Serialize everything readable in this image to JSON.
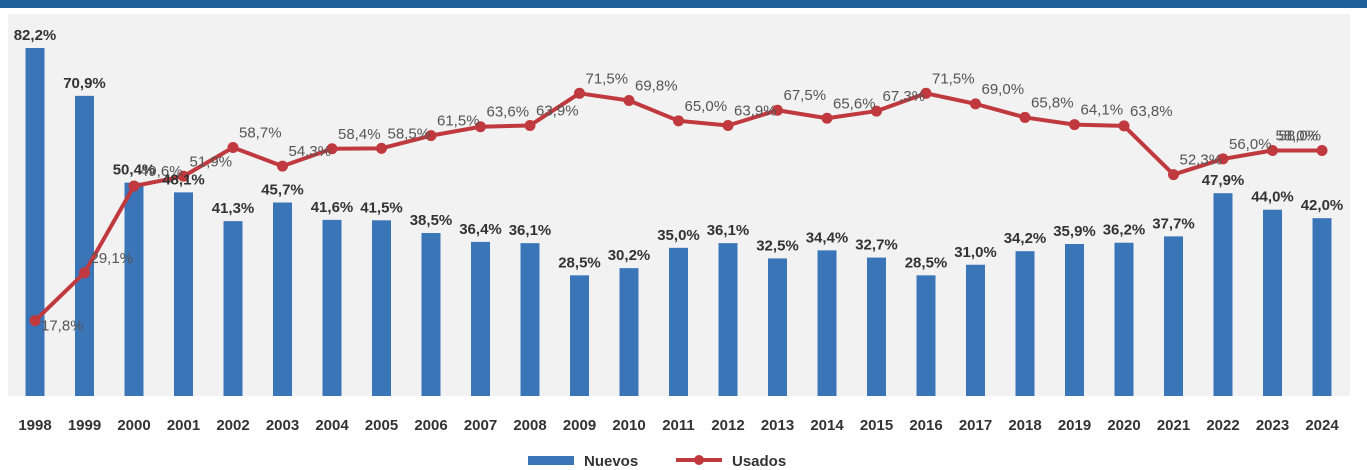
{
  "chart_data": {
    "type": "bar",
    "categories": [
      "1998",
      "1999",
      "2000",
      "2001",
      "2002",
      "2003",
      "2004",
      "2005",
      "2006",
      "2007",
      "2008",
      "2009",
      "2010",
      "2011",
      "2012",
      "2013",
      "2014",
      "2015",
      "2016",
      "2017",
      "2018",
      "2019",
      "2020",
      "2021",
      "2022",
      "2023",
      "2024"
    ],
    "series": [
      {
        "name": "Nuevos",
        "type": "bar",
        "color": "#3a75b8",
        "values": [
          82.2,
          70.9,
          50.4,
          48.1,
          41.3,
          45.7,
          41.6,
          41.5,
          38.5,
          36.4,
          36.1,
          28.5,
          30.2,
          35.0,
          36.1,
          32.5,
          34.4,
          32.7,
          28.5,
          31.0,
          34.2,
          35.9,
          36.2,
          37.7,
          47.9,
          44.0,
          42.0
        ],
        "labels": [
          "82,2%",
          "70,9%",
          "50,4%",
          "48,1%",
          "41,3%",
          "45,7%",
          "41,6%",
          "41,5%",
          "38,5%",
          "36,4%",
          "36,1%",
          "28,5%",
          "30,2%",
          "35,0%",
          "36,1%",
          "32,5%",
          "34,4%",
          "32,7%",
          "28,5%",
          "31,0%",
          "34,2%",
          "35,9%",
          "36,2%",
          "37,7%",
          "47,9%",
          "44,0%",
          "42,0%"
        ]
      },
      {
        "name": "Usados",
        "type": "line",
        "color": "#c0393f",
        "values": [
          17.8,
          29.1,
          49.6,
          51.9,
          58.7,
          54.3,
          58.4,
          58.5,
          61.5,
          63.6,
          63.9,
          71.5,
          69.8,
          65.0,
          63.9,
          67.5,
          65.6,
          67.3,
          71.5,
          69.0,
          65.8,
          64.1,
          63.8,
          52.3,
          56.0,
          58.0,
          58.0
        ],
        "labels": [
          "17,8%",
          "29,1%",
          "49,6%",
          "51,9%",
          "58,7%",
          "54,3%",
          "58,4%",
          "58,5%",
          "61,5%",
          "63,6%",
          "63,9%",
          "71,5%",
          "69,8%",
          "65,0%",
          "63,9%",
          "67,5%",
          "65,6%",
          "67,3%",
          "71,5%",
          "69,0%",
          "65,8%",
          "64,1%",
          "63,8%",
          "52,3%",
          "56,0%",
          "58,0%",
          "58,0%"
        ]
      }
    ],
    "title": "",
    "xlabel": "",
    "ylabel": "",
    "ylim": [
      0,
      82.2
    ],
    "grid": false,
    "legend_position": "bottom",
    "legend": [
      {
        "name": "Nuevos",
        "symbol": "bar"
      },
      {
        "name": "Usados",
        "symbol": "line-marker"
      }
    ],
    "plot_background": "#f2f2f2",
    "header_bar_color": "#1f5f99"
  }
}
